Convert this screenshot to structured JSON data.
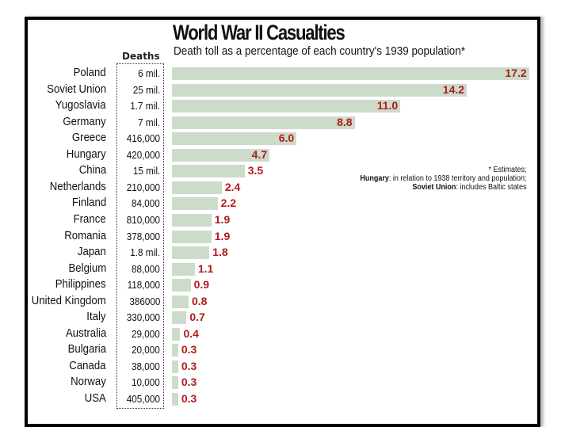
{
  "chart_data": {
    "type": "bar",
    "orientation": "horizontal",
    "title": "World War II Casualties",
    "subtitle": "Death toll as a percentage of each country's 1939 population*",
    "deaths_header": "Deaths",
    "xlabel": "",
    "ylabel": "",
    "xlim": [
      0,
      17.2
    ],
    "grid": false,
    "categories": [
      "Poland",
      "Soviet Union",
      "Yugoslavia",
      "Germany",
      "Greece",
      "Hungary",
      "China",
      "Netherlands",
      "Finland",
      "France",
      "Romania",
      "Japan",
      "Belgium",
      "Philippines",
      "United Kingdom",
      "Italy",
      "Australia",
      "Bulgaria",
      "Canada",
      "Norway",
      "USA"
    ],
    "deaths": [
      "6 mil.",
      "25 mil.",
      "1.7 mil.",
      "7 mil.",
      "416,000",
      "420,000",
      "15 mil.",
      "210,000",
      "84,000",
      "810,000",
      "378,000",
      "1.8 mil.",
      "88,000",
      "118,000",
      "386000",
      "330,000",
      "29,000",
      "20,000",
      "38,000",
      "10,000",
      "405,000"
    ],
    "values": [
      17.2,
      14.2,
      11.0,
      8.8,
      6.0,
      4.7,
      3.5,
      2.4,
      2.2,
      1.9,
      1.9,
      1.8,
      1.1,
      0.9,
      0.8,
      0.7,
      0.4,
      0.3,
      0.3,
      0.3,
      0.3
    ],
    "value_labels": [
      "17.2",
      "14.2",
      "11.0",
      "8.8",
      "6.0",
      "4.7",
      "3.5",
      "2.4",
      "2.2",
      "1.9",
      "1.9",
      "1.8",
      "1.1",
      "0.9",
      "0.8",
      "0.7",
      "0.4",
      "0.3",
      "0.3",
      "0.3",
      "0.3"
    ],
    "notes": {
      "line1": "* Estimates;",
      "line2_bold": "Hungary",
      "line2_rest": ": in relation to 1938 territory and population;",
      "line3_bold": "Soviet Union",
      "line3_rest": ": includes Baltic states"
    },
    "colors": {
      "bar": "#cddbcb",
      "value_label": "#b31b1b"
    }
  }
}
